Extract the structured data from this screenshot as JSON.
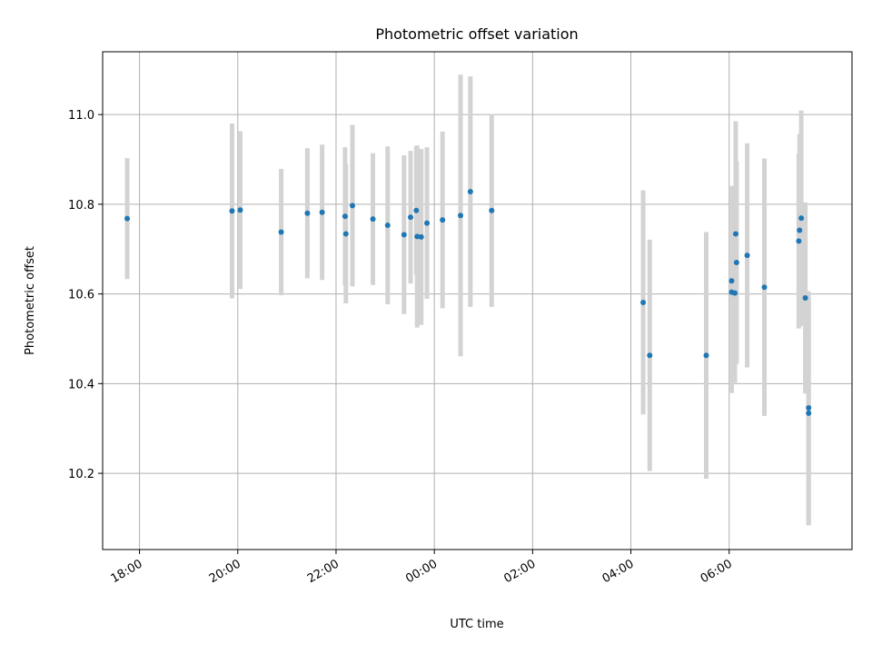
{
  "chart_data": {
    "type": "scatter",
    "title": "Photometric offset variation",
    "xlabel": "UTC time",
    "ylabel": "Photometric offset",
    "x_axis": "time",
    "xlim": [
      "17:15",
      "32:30"
    ],
    "ylim": [
      10.03,
      11.14
    ],
    "grid": true,
    "x_ticks": [
      {
        "t": "18:00",
        "label": "18:00"
      },
      {
        "t": "20:00",
        "label": "20:00"
      },
      {
        "t": "22:00",
        "label": "22:00"
      },
      {
        "t": "24:00",
        "label": "00:00"
      },
      {
        "t": "26:00",
        "label": "02:00"
      },
      {
        "t": "28:00",
        "label": "04:00"
      },
      {
        "t": "30:00",
        "label": "06:00"
      }
    ],
    "y_ticks": [
      10.2,
      10.4,
      10.6,
      10.8,
      11.0
    ],
    "y_tick_labels": [
      "10.2",
      "10.4",
      "10.6",
      "10.8",
      "11.0"
    ],
    "point_color": "#1f77b4",
    "errorbar_color": "#d3d3d3",
    "points": [
      {
        "t": "17:45",
        "y": 10.768,
        "err": 0.135
      },
      {
        "t": "19:53",
        "y": 10.785,
        "err": 0.195
      },
      {
        "t": "20:03",
        "y": 10.787,
        "err": 0.176
      },
      {
        "t": "20:53",
        "y": 10.738,
        "err": 0.141
      },
      {
        "t": "21:25",
        "y": 10.78,
        "err": 0.145
      },
      {
        "t": "21:43",
        "y": 10.782,
        "err": 0.151
      },
      {
        "t": "22:11",
        "y": 10.773,
        "err": 0.154
      },
      {
        "t": "22:12",
        "y": 10.734,
        "err": 0.155
      },
      {
        "t": "22:20",
        "y": 10.797,
        "err": 0.18
      },
      {
        "t": "22:45",
        "y": 10.767,
        "err": 0.147
      },
      {
        "t": "23:03",
        "y": 10.753,
        "err": 0.176
      },
      {
        "t": "23:23",
        "y": 10.732,
        "err": 0.177
      },
      {
        "t": "23:31",
        "y": 10.771,
        "err": 0.148
      },
      {
        "t": "23:38",
        "y": 10.786,
        "err": 0.143
      },
      {
        "t": "23:39",
        "y": 10.728,
        "err": 0.203
      },
      {
        "t": "23:44",
        "y": 10.727,
        "err": 0.196
      },
      {
        "t": "23:51",
        "y": 10.758,
        "err": 0.169
      },
      {
        "t": "24:10",
        "y": 10.765,
        "err": 0.197
      },
      {
        "t": "24:32",
        "y": 10.775,
        "err": 0.314
      },
      {
        "t": "24:44",
        "y": 10.828,
        "err": 0.257
      },
      {
        "t": "25:10",
        "y": 10.786,
        "err": 0.215
      },
      {
        "t": "28:15",
        "y": 10.581,
        "err": 0.25
      },
      {
        "t": "28:23",
        "y": 10.463,
        "err": 0.258
      },
      {
        "t": "29:32",
        "y": 10.463,
        "err": 0.275
      },
      {
        "t": "30:03",
        "y": 10.629,
        "err": 0.212
      },
      {
        "t": "30:03",
        "y": 10.604,
        "err": 0.225
      },
      {
        "t": "30:07",
        "y": 10.602,
        "err": 0.2
      },
      {
        "t": "30:08",
        "y": 10.734,
        "err": 0.251
      },
      {
        "t": "30:09",
        "y": 10.67,
        "err": 0.226
      },
      {
        "t": "30:22",
        "y": 10.686,
        "err": 0.25
      },
      {
        "t": "30:43",
        "y": 10.615,
        "err": 0.287
      },
      {
        "t": "31:25",
        "y": 10.718,
        "err": 0.195
      },
      {
        "t": "31:26",
        "y": 10.742,
        "err": 0.215
      },
      {
        "t": "31:28",
        "y": 10.769,
        "err": 0.24
      },
      {
        "t": "31:33",
        "y": 10.591,
        "err": 0.213
      },
      {
        "t": "31:37",
        "y": 10.346,
        "err": 0.26
      },
      {
        "t": "31:37",
        "y": 10.334,
        "err": 0.25
      }
    ]
  }
}
